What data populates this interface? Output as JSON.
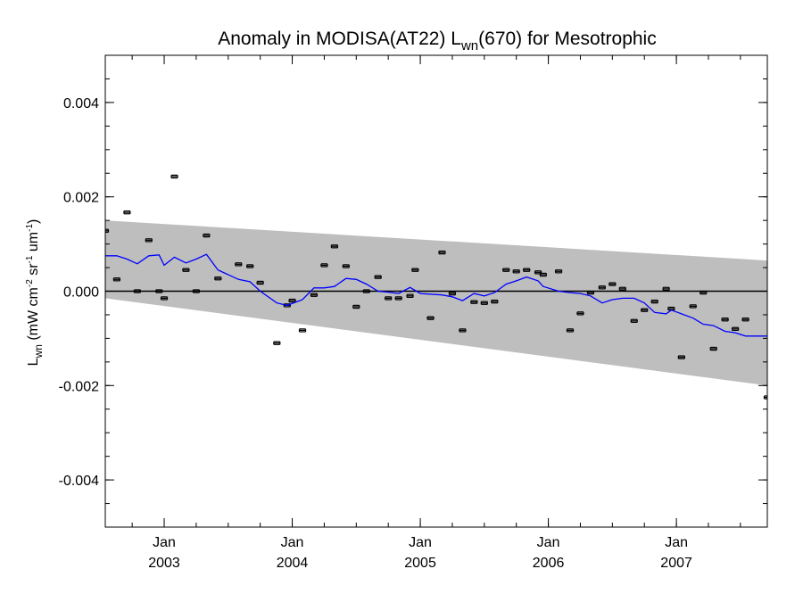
{
  "chart_data": {
    "type": "scatter",
    "title": {
      "prefix": "Anomaly in MODISA(AT22) L",
      "subscript": "wn",
      "suffix": "(670) for Mesotrophic"
    },
    "ylabel": {
      "base": "L",
      "subscript": "wn",
      "parts": [
        {
          "text": " (mW cm",
          "sup": false
        },
        {
          "text": "-2",
          "sup": true
        },
        {
          "text": " sr",
          "sup": false
        },
        {
          "text": "-1",
          "sup": true
        },
        {
          "text": " um",
          "sup": false
        },
        {
          "text": "-1",
          "sup": true
        },
        {
          "text": ")",
          "sup": false
        }
      ]
    },
    "xlim": [
      2002.54,
      2007.71
    ],
    "ylim": [
      -0.005,
      0.005
    ],
    "x_ticks": [
      {
        "x": 2003.0,
        "month": "Jan",
        "year": "2003"
      },
      {
        "x": 2004.0,
        "month": "Jan",
        "year": "2004"
      },
      {
        "x": 2005.0,
        "month": "Jan",
        "year": "2005"
      },
      {
        "x": 2006.0,
        "month": "Jan",
        "year": "2006"
      },
      {
        "x": 2007.0,
        "month": "Jan",
        "year": "2007"
      }
    ],
    "y_ticks": [
      {
        "y": 0.004,
        "label": "0.004"
      },
      {
        "y": 0.002,
        "label": "0.002"
      },
      {
        "y": 0.0,
        "label": "0.000"
      },
      {
        "y": -0.002,
        "label": "-0.002"
      },
      {
        "y": -0.004,
        "label": "-0.004"
      }
    ],
    "y_minor_step": 0.0005,
    "x_minor_step": 0.25,
    "zero_line": 0.0,
    "band": {
      "color": "#bebebe",
      "upper": [
        [
          2002.54,
          0.0015
        ],
        [
          2007.71,
          0.00065
        ]
      ],
      "lower": [
        [
          2002.54,
          -0.00015
        ],
        [
          2007.71,
          -0.002
        ]
      ]
    },
    "series": [
      {
        "type": "points_with_error_bars",
        "color": "#000000",
        "error": 3e-05,
        "points": [
          [
            2002.54,
            0.00128
          ],
          [
            2002.63,
            0.00025
          ],
          [
            2002.71,
            0.00167
          ],
          [
            2002.79,
            0.0
          ],
          [
            2002.88,
            0.00108
          ],
          [
            2002.96,
            0.0
          ],
          [
            2003.0,
            -0.00015
          ],
          [
            2003.08,
            0.00243
          ],
          [
            2003.17,
            0.00045
          ],
          [
            2003.25,
            0.0
          ],
          [
            2003.33,
            0.00118
          ],
          [
            2003.42,
            0.00027
          ],
          [
            2003.58,
            0.00057
          ],
          [
            2003.67,
            0.00053
          ],
          [
            2003.75,
            0.00018
          ],
          [
            2003.88,
            -0.0011
          ],
          [
            2003.96,
            -0.0003
          ],
          [
            2004.0,
            -0.0002
          ],
          [
            2004.08,
            -0.00083
          ],
          [
            2004.17,
            -8e-05
          ],
          [
            2004.25,
            0.00055
          ],
          [
            2004.33,
            0.00095
          ],
          [
            2004.42,
            0.00053
          ],
          [
            2004.5,
            -0.00033
          ],
          [
            2004.58,
            0.0
          ],
          [
            2004.67,
            0.0003
          ],
          [
            2004.75,
            -0.00015
          ],
          [
            2004.83,
            -0.00015
          ],
          [
            2004.92,
            -0.0001
          ],
          [
            2004.96,
            0.00045
          ],
          [
            2005.08,
            -0.00057
          ],
          [
            2005.17,
            0.00082
          ],
          [
            2005.25,
            -5e-05
          ],
          [
            2005.33,
            -0.00083
          ],
          [
            2005.42,
            -0.00023
          ],
          [
            2005.5,
            -0.00025
          ],
          [
            2005.58,
            -0.00022
          ],
          [
            2005.67,
            0.00045
          ],
          [
            2005.75,
            0.00042
          ],
          [
            2005.83,
            0.00045
          ],
          [
            2005.92,
            0.0004
          ],
          [
            2005.96,
            0.00035
          ],
          [
            2006.08,
            0.00042
          ],
          [
            2006.17,
            -0.00083
          ],
          [
            2006.25,
            -0.00047
          ],
          [
            2006.33,
            -3e-05
          ],
          [
            2006.42,
            8e-05
          ],
          [
            2006.5,
            0.00015
          ],
          [
            2006.58,
            5e-05
          ],
          [
            2006.67,
            -0.00063
          ],
          [
            2006.75,
            -0.0004
          ],
          [
            2006.83,
            -0.00022
          ],
          [
            2006.92,
            5e-05
          ],
          [
            2006.96,
            -0.00037
          ],
          [
            2007.04,
            -0.0014
          ],
          [
            2007.13,
            -0.00032
          ],
          [
            2007.21,
            -3e-05
          ],
          [
            2007.29,
            -0.00122
          ],
          [
            2007.38,
            -0.0006
          ],
          [
            2007.46,
            -0.0008
          ],
          [
            2007.54,
            -0.0006
          ],
          [
            2007.71,
            -0.00225
          ]
        ]
      },
      {
        "type": "line",
        "color": "#0000ff",
        "points": [
          [
            2002.54,
            0.00075
          ],
          [
            2002.63,
            0.00075
          ],
          [
            2002.71,
            0.00068
          ],
          [
            2002.79,
            0.00058
          ],
          [
            2002.88,
            0.00075
          ],
          [
            2002.96,
            0.00077
          ],
          [
            2003.0,
            0.00055
          ],
          [
            2003.08,
            0.00072
          ],
          [
            2003.17,
            0.0006
          ],
          [
            2003.25,
            0.00068
          ],
          [
            2003.33,
            0.00078
          ],
          [
            2003.42,
            0.00045
          ],
          [
            2003.58,
            0.00025
          ],
          [
            2003.67,
            0.0002
          ],
          [
            2003.75,
            0.0
          ],
          [
            2003.88,
            -0.00025
          ],
          [
            2003.96,
            -0.0003
          ],
          [
            2004.08,
            -0.00018
          ],
          [
            2004.17,
            7e-05
          ],
          [
            2004.25,
            7e-05
          ],
          [
            2004.33,
            0.0001
          ],
          [
            2004.42,
            0.00027
          ],
          [
            2004.5,
            0.00025
          ],
          [
            2004.58,
            0.00015
          ],
          [
            2004.67,
            0.0
          ],
          [
            2004.75,
            -2e-05
          ],
          [
            2004.83,
            -5e-05
          ],
          [
            2004.92,
            8e-05
          ],
          [
            2005.0,
            -5e-05
          ],
          [
            2005.17,
            -8e-05
          ],
          [
            2005.25,
            -0.00012
          ],
          [
            2005.33,
            -0.0002
          ],
          [
            2005.42,
            -5e-05
          ],
          [
            2005.5,
            -0.0001
          ],
          [
            2005.58,
            -3e-05
          ],
          [
            2005.67,
            0.00015
          ],
          [
            2005.75,
            0.00022
          ],
          [
            2005.83,
            0.0003
          ],
          [
            2005.92,
            0.00022
          ],
          [
            2005.96,
            0.0001
          ],
          [
            2006.08,
            0.0
          ],
          [
            2006.17,
            -3e-05
          ],
          [
            2006.25,
            -5e-05
          ],
          [
            2006.33,
            -0.0001
          ],
          [
            2006.42,
            -0.00025
          ],
          [
            2006.5,
            -0.00018
          ],
          [
            2006.58,
            -0.00015
          ],
          [
            2006.67,
            -0.00015
          ],
          [
            2006.75,
            -0.00025
          ],
          [
            2006.83,
            -0.00045
          ],
          [
            2006.92,
            -0.00048
          ],
          [
            2006.96,
            -0.0004
          ],
          [
            2007.04,
            -0.00048
          ],
          [
            2007.13,
            -0.00057
          ],
          [
            2007.21,
            -0.0007
          ],
          [
            2007.29,
            -0.00073
          ],
          [
            2007.38,
            -0.00085
          ],
          [
            2007.46,
            -0.00088
          ],
          [
            2007.54,
            -0.00095
          ],
          [
            2007.71,
            -0.00095
          ]
        ]
      }
    ]
  }
}
